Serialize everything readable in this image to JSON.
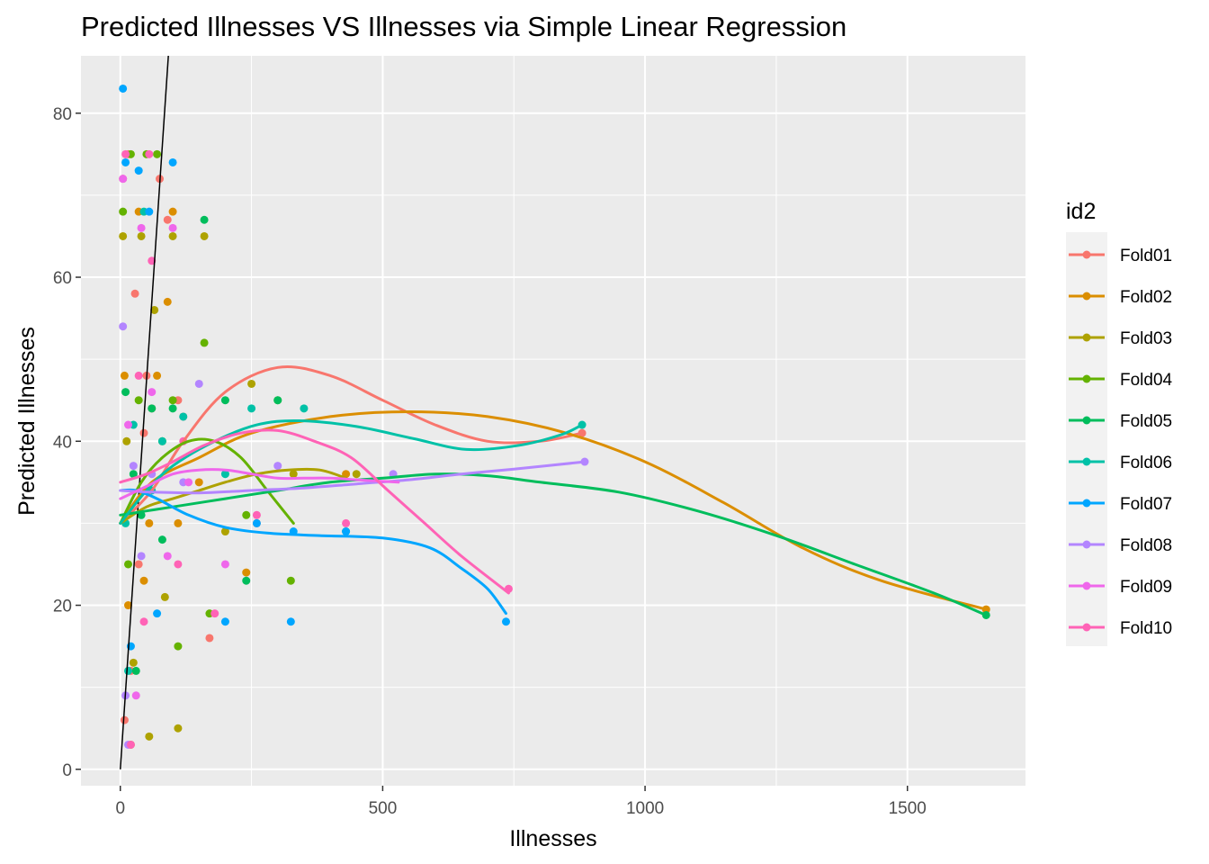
{
  "chart_data": {
    "type": "scatter",
    "title": "Predicted Illnesses VS Illnesses via Simple Linear Regression",
    "xlabel": "Illnesses",
    "ylabel": "Predicted Illnesses",
    "xlim": [
      -75,
      1725
    ],
    "ylim": [
      -2,
      87
    ],
    "x_ticks": [
      0,
      500,
      1000,
      1500
    ],
    "x_tick_labels": [
      "0",
      "500",
      "1000",
      "1500"
    ],
    "y_ticks": [
      0,
      20,
      40,
      60,
      80
    ],
    "y_tick_labels": [
      "0",
      "20",
      "40",
      "60",
      "80"
    ],
    "grid": true,
    "legend": {
      "title": "id2",
      "placement": "right"
    },
    "reference_line": {
      "slope": 0.95,
      "intercept": 0.0,
      "color": "#000000"
    },
    "series": [
      {
        "name": "Fold01",
        "color": "#F8766D",
        "points": [
          [
            5,
            72
          ],
          [
            15,
            75
          ],
          [
            28,
            58
          ],
          [
            45,
            41
          ],
          [
            60,
            44
          ],
          [
            75,
            72
          ],
          [
            90,
            67
          ],
          [
            110,
            45
          ],
          [
            170,
            16
          ],
          [
            260,
            30
          ],
          [
            35,
            25
          ],
          [
            20,
            12
          ],
          [
            8,
            6
          ],
          [
            50,
            48
          ],
          [
            120,
            43
          ],
          [
            880,
            41
          ]
        ],
        "smooth": [
          [
            0,
            30
          ],
          [
            60,
            34
          ],
          [
            120,
            40
          ],
          [
            200,
            46
          ],
          [
            300,
            49
          ],
          [
            400,
            48
          ],
          [
            500,
            45
          ],
          [
            600,
            42
          ],
          [
            700,
            40
          ],
          [
            800,
            40
          ],
          [
            880,
            41
          ]
        ]
      },
      {
        "name": "Fold02",
        "color": "#DB8E00",
        "points": [
          [
            8,
            48
          ],
          [
            15,
            20
          ],
          [
            35,
            68
          ],
          [
            55,
            30
          ],
          [
            70,
            48
          ],
          [
            90,
            57
          ],
          [
            100,
            68
          ],
          [
            150,
            35
          ],
          [
            240,
            24
          ],
          [
            430,
            36
          ],
          [
            1650,
            19.5
          ],
          [
            20,
            3
          ],
          [
            45,
            23
          ],
          [
            110,
            30
          ]
        ],
        "smooth": [
          [
            0,
            30
          ],
          [
            60,
            35
          ],
          [
            150,
            38
          ],
          [
            250,
            41
          ],
          [
            400,
            43
          ],
          [
            550,
            43.6
          ],
          [
            700,
            43
          ],
          [
            850,
            41
          ],
          [
            1000,
            37.5
          ],
          [
            1150,
            32.5
          ],
          [
            1300,
            27
          ],
          [
            1450,
            23
          ],
          [
            1650,
            19.5
          ]
        ]
      },
      {
        "name": "Fold03",
        "color": "#AEA200",
        "points": [
          [
            5,
            65
          ],
          [
            40,
            65
          ],
          [
            65,
            56
          ],
          [
            100,
            65
          ],
          [
            160,
            65
          ],
          [
            250,
            47
          ],
          [
            110,
            5
          ],
          [
            55,
            4
          ],
          [
            85,
            21
          ],
          [
            25,
            13
          ],
          [
            12,
            40
          ],
          [
            200,
            29
          ],
          [
            330,
            36
          ],
          [
            450,
            36
          ]
        ],
        "smooth": [
          [
            0,
            30
          ],
          [
            50,
            32
          ],
          [
            100,
            33
          ],
          [
            150,
            34
          ],
          [
            200,
            35
          ],
          [
            260,
            36
          ],
          [
            320,
            36.5
          ],
          [
            380,
            36.5
          ],
          [
            430,
            35.5
          ]
        ]
      },
      {
        "name": "Fold04",
        "color": "#64B200",
        "points": [
          [
            5,
            68
          ],
          [
            20,
            75
          ],
          [
            50,
            75
          ],
          [
            70,
            75
          ],
          [
            100,
            45
          ],
          [
            160,
            52
          ],
          [
            170,
            19
          ],
          [
            325,
            23
          ],
          [
            240,
            31
          ],
          [
            15,
            25
          ],
          [
            35,
            45
          ],
          [
            110,
            15
          ],
          [
            80,
            40
          ],
          [
            300,
            45
          ]
        ],
        "smooth": [
          [
            0,
            30
          ],
          [
            40,
            35
          ],
          [
            80,
            38
          ],
          [
            130,
            40
          ],
          [
            180,
            40
          ],
          [
            230,
            38
          ],
          [
            280,
            34
          ],
          [
            330,
            30
          ]
        ]
      },
      {
        "name": "Fold05",
        "color": "#00BD5C",
        "points": [
          [
            10,
            46
          ],
          [
            25,
            36
          ],
          [
            40,
            31
          ],
          [
            60,
            44
          ],
          [
            100,
            44
          ],
          [
            160,
            67
          ],
          [
            200,
            45
          ],
          [
            240,
            23
          ],
          [
            300,
            45
          ],
          [
            1650,
            18.8
          ],
          [
            30,
            12
          ],
          [
            80,
            28
          ]
        ],
        "smooth": [
          [
            0,
            31
          ],
          [
            50,
            31.5
          ],
          [
            100,
            32
          ],
          [
            200,
            33
          ],
          [
            300,
            34
          ],
          [
            400,
            35
          ],
          [
            500,
            35.5
          ],
          [
            600,
            36
          ],
          [
            700,
            35.8
          ],
          [
            800,
            35
          ],
          [
            950,
            33.8
          ],
          [
            1100,
            31.5
          ],
          [
            1250,
            28.5
          ],
          [
            1400,
            25
          ],
          [
            1550,
            21.5
          ],
          [
            1650,
            18.8
          ]
        ]
      },
      {
        "name": "Fold06",
        "color": "#00C1A7",
        "points": [
          [
            10,
            30
          ],
          [
            25,
            42
          ],
          [
            45,
            68
          ],
          [
            80,
            40
          ],
          [
            120,
            43
          ],
          [
            200,
            36
          ],
          [
            250,
            44
          ],
          [
            350,
            44
          ],
          [
            430,
            29
          ],
          [
            880,
            42
          ],
          [
            15,
            12
          ],
          [
            60,
            34
          ]
        ],
        "smooth": [
          [
            0,
            30
          ],
          [
            50,
            34
          ],
          [
            100,
            37
          ],
          [
            180,
            40
          ],
          [
            260,
            42
          ],
          [
            340,
            42.5
          ],
          [
            450,
            41.8
          ],
          [
            560,
            40.3
          ],
          [
            660,
            39
          ],
          [
            760,
            39.5
          ],
          [
            840,
            40.8
          ],
          [
            880,
            42
          ]
        ]
      },
      {
        "name": "Fold07",
        "color": "#00A6FF",
        "points": [
          [
            5,
            83
          ],
          [
            10,
            74
          ],
          [
            35,
            73
          ],
          [
            55,
            68
          ],
          [
            100,
            74
          ],
          [
            200,
            18
          ],
          [
            260,
            30
          ],
          [
            325,
            18
          ],
          [
            330,
            29
          ],
          [
            430,
            29
          ],
          [
            735,
            18
          ],
          [
            20,
            15
          ],
          [
            70,
            19
          ]
        ],
        "smooth": [
          [
            0,
            34
          ],
          [
            30,
            34
          ],
          [
            70,
            33
          ],
          [
            130,
            31
          ],
          [
            200,
            29.5
          ],
          [
            280,
            28.8
          ],
          [
            380,
            28.5
          ],
          [
            500,
            28.2
          ],
          [
            590,
            27
          ],
          [
            650,
            24.5
          ],
          [
            700,
            22
          ],
          [
            735,
            19
          ]
        ]
      },
      {
        "name": "Fold08",
        "color": "#B385FF",
        "points": [
          [
            5,
            54
          ],
          [
            10,
            9
          ],
          [
            25,
            37
          ],
          [
            60,
            36
          ],
          [
            120,
            35
          ],
          [
            150,
            47
          ],
          [
            300,
            37
          ],
          [
            520,
            36
          ],
          [
            885,
            37.5
          ],
          [
            15,
            3
          ],
          [
            40,
            26
          ]
        ],
        "smooth": [
          [
            0,
            34
          ],
          [
            60,
            33.8
          ],
          [
            150,
            33.7
          ],
          [
            250,
            34
          ],
          [
            350,
            34.3
          ],
          [
            450,
            34.8
          ],
          [
            550,
            35.3
          ],
          [
            650,
            36
          ],
          [
            750,
            36.6
          ],
          [
            885,
            37.5
          ]
        ]
      },
      {
        "name": "Fold09",
        "color": "#EF67EB",
        "points": [
          [
            5,
            72
          ],
          [
            40,
            66
          ],
          [
            100,
            66
          ],
          [
            200,
            25
          ],
          [
            60,
            46
          ],
          [
            130,
            35
          ],
          [
            30,
            9
          ],
          [
            15,
            42
          ],
          [
            90,
            26
          ]
        ],
        "smooth": [
          [
            0,
            33
          ],
          [
            50,
            34.5
          ],
          [
            100,
            36
          ],
          [
            150,
            36.5
          ],
          [
            200,
            36.5
          ],
          [
            250,
            36
          ],
          [
            300,
            35.5
          ],
          [
            350,
            35.5
          ],
          [
            400,
            35.5
          ],
          [
            450,
            35.3
          ],
          [
            530,
            35
          ]
        ]
      },
      {
        "name": "Fold10",
        "color": "#FF63B6",
        "points": [
          [
            10,
            75
          ],
          [
            55,
            75
          ],
          [
            60,
            62
          ],
          [
            120,
            40
          ],
          [
            180,
            19
          ],
          [
            260,
            31
          ],
          [
            430,
            30
          ],
          [
            740,
            22
          ],
          [
            20,
            3
          ],
          [
            45,
            18
          ],
          [
            110,
            25
          ],
          [
            35,
            48
          ]
        ],
        "smooth": [
          [
            0,
            35
          ],
          [
            50,
            36
          ],
          [
            100,
            37.5
          ],
          [
            160,
            39.5
          ],
          [
            230,
            41
          ],
          [
            300,
            41.3
          ],
          [
            370,
            40
          ],
          [
            440,
            38
          ],
          [
            510,
            34
          ],
          [
            580,
            30
          ],
          [
            650,
            26
          ],
          [
            740,
            21.5
          ]
        ]
      }
    ]
  }
}
